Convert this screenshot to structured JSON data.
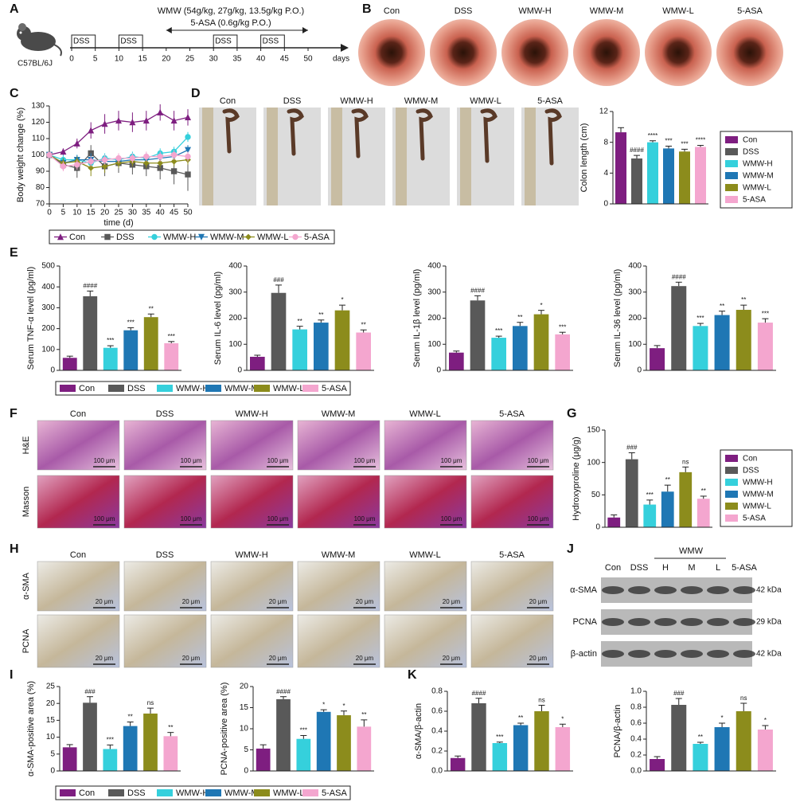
{
  "panel_letters": [
    "A",
    "B",
    "C",
    "D",
    "E",
    "F",
    "G",
    "H",
    "I",
    "J",
    "K"
  ],
  "timeline": {
    "strain": "C57BL/6J",
    "treatments": [
      "WMW (54g/kg, 27g/kg, 13.5g/kg P.O.)",
      "5-ASA (0.6g/kg P.O.)"
    ],
    "treatment_span": [
      20,
      50
    ],
    "days": [
      0,
      5,
      10,
      15,
      20,
      25,
      30,
      35,
      40,
      45,
      50
    ],
    "unit": "days",
    "dss": [
      {
        "label": "DSS",
        "start": 0,
        "end": 5
      },
      {
        "label": "DSS",
        "start": 10,
        "end": 15
      },
      {
        "label": "DSS",
        "start": 30,
        "end": 35
      },
      {
        "label": "DSS",
        "start": 40,
        "end": 45
      }
    ]
  },
  "endoscopy": {
    "labels": [
      "Con",
      "DSS",
      "WMW-H",
      "WMW-M",
      "WMW-L",
      "5-ASA"
    ]
  },
  "colon_photos": {
    "labels": [
      "Con",
      "DSS",
      "WMW-H",
      "WMW-M",
      "WMW-L",
      "5-ASA"
    ]
  },
  "histology": {
    "columns": [
      "Con",
      "DSS",
      "WMW-H",
      "WMW-M",
      "WMW-L",
      "5-ASA"
    ],
    "rows": [
      "H&E",
      "Masson"
    ],
    "scale_bar": "100 μm"
  },
  "ihc": {
    "columns": [
      "Con",
      "DSS",
      "WMW-H",
      "WMW-M",
      "WMW-L",
      "5-ASA"
    ],
    "rows": [
      "α-SMA",
      "PCNA"
    ],
    "scale_bar": "20 μm"
  },
  "western_blot": {
    "group": "WMW",
    "lanes": [
      "Con",
      "DSS",
      "H",
      "M",
      "L",
      "5-ASA"
    ],
    "rows": [
      {
        "protein": "α-SMA",
        "size": "42 kDa"
      },
      {
        "protein": "PCNA",
        "size": "29 kDa"
      },
      {
        "protein": "β-actin",
        "size": "42 kDa"
      }
    ]
  },
  "chart_data": [
    {
      "type": "line",
      "ylabel": "Body weight change (%)",
      "xlabel": "time (d)",
      "x": [
        0,
        5,
        10,
        15,
        20,
        25,
        30,
        35,
        40,
        45,
        50
      ],
      "xlim": [
        0,
        50
      ],
      "xticks": [
        0,
        5,
        10,
        15,
        20,
        25,
        30,
        35,
        40,
        45,
        50
      ],
      "ylim": [
        70,
        130
      ],
      "yticks": [
        70,
        80,
        90,
        100,
        110,
        120,
        130
      ],
      "legend": "bottom",
      "series": [
        {
          "name": "Con",
          "color": "#7e1e80",
          "marker": "triangle",
          "values": [
            100,
            102,
            107,
            115,
            119,
            121,
            120,
            121,
            126,
            121,
            123
          ],
          "errors": [
            0,
            2,
            3,
            5,
            6,
            6,
            6,
            6,
            5,
            6,
            5
          ]
        },
        {
          "name": "DSS",
          "color": "#595959",
          "marker": "square",
          "values": [
            100,
            94,
            92,
            101,
            93,
            95,
            94,
            93,
            92,
            90,
            88
          ],
          "errors": [
            0,
            3,
            6,
            5,
            6,
            6,
            6,
            6,
            7,
            8,
            10
          ]
        },
        {
          "name": "WMW-H",
          "color": "#35d0dc",
          "marker": "circle",
          "values": [
            100,
            97,
            97,
            95,
            98,
            97,
            99,
            98,
            101,
            102,
            111
          ],
          "errors": [
            0,
            3,
            3,
            3,
            3,
            3,
            3,
            3,
            3,
            3,
            3
          ]
        },
        {
          "name": "WMW-M",
          "color": "#1f77b4",
          "marker": "triangle-down",
          "values": [
            100,
            95,
            97,
            97,
            96,
            96,
            97,
            97,
            98,
            99,
            103
          ],
          "errors": [
            0,
            3,
            3,
            4,
            3,
            3,
            3,
            3,
            3,
            3,
            3
          ]
        },
        {
          "name": "WMW-L",
          "color": "#8c8c1c",
          "marker": "diamond",
          "values": [
            100,
            95,
            96,
            92,
            93,
            95,
            96,
            95,
            95,
            96,
            97
          ],
          "errors": [
            0,
            3,
            3,
            5,
            4,
            3,
            3,
            3,
            3,
            3,
            3
          ]
        },
        {
          "name": "5-ASA",
          "color": "#f4a6cf",
          "marker": "circle",
          "values": [
            100,
            93,
            94,
            96,
            97,
            98,
            98,
            99,
            99,
            100,
            99
          ],
          "errors": [
            0,
            3,
            3,
            3,
            3,
            3,
            3,
            3,
            3,
            3,
            3
          ]
        }
      ]
    },
    {
      "type": "bar",
      "ylabel": "Colon length (cm)",
      "legend": "right",
      "categories": [
        "Con",
        "DSS",
        "WMW-H",
        "WMW-M",
        "WMW-L",
        "5-ASA"
      ],
      "colors": [
        "#7e1e80",
        "#595959",
        "#35d0dc",
        "#1f77b4",
        "#8c8c1c",
        "#f4a6cf"
      ],
      "values": [
        9.3,
        5.9,
        8.0,
        7.2,
        6.8,
        7.4
      ],
      "errors": [
        0.6,
        0.4,
        0.2,
        0.3,
        0.3,
        0.2
      ],
      "annotations": [
        null,
        "####",
        "****",
        "***",
        "***",
        "****"
      ],
      "ylim": [
        0,
        12
      ],
      "yticks": [
        0,
        4,
        8,
        12
      ]
    },
    {
      "type": "bar",
      "ylabel": "Serum TNF-α level (pg/ml)",
      "legend": "bottom",
      "categories": [
        "Con",
        "DSS",
        "WMW-H",
        "WMW-M",
        "WMW-L",
        "5-ASA"
      ],
      "colors": [
        "#7e1e80",
        "#595959",
        "#35d0dc",
        "#1f77b4",
        "#8c8c1c",
        "#f4a6cf"
      ],
      "values": [
        60,
        355,
        108,
        192,
        255,
        130
      ],
      "errors": [
        8,
        25,
        10,
        12,
        15,
        8
      ],
      "annotations": [
        null,
        "####",
        "***",
        "***",
        "**",
        "***"
      ],
      "ylim": [
        0,
        500
      ],
      "yticks": [
        0,
        100,
        200,
        300,
        400,
        500
      ]
    },
    {
      "type": "bar",
      "ylabel": "Serum IL-6 level (pg/ml)",
      "categories": [
        "Con",
        "DSS",
        "WMW-H",
        "WMW-M",
        "WMW-L",
        "5-ASA"
      ],
      "colors": [
        "#7e1e80",
        "#595959",
        "#35d0dc",
        "#1f77b4",
        "#8c8c1c",
        "#f4a6cf"
      ],
      "values": [
        52,
        297,
        157,
        183,
        230,
        145
      ],
      "errors": [
        6,
        30,
        12,
        10,
        20,
        10
      ],
      "annotations": [
        null,
        "###",
        "**",
        "**",
        "*",
        "**"
      ],
      "ylim": [
        0,
        400
      ],
      "yticks": [
        0,
        100,
        200,
        300,
        400
      ]
    },
    {
      "type": "bar",
      "ylabel": "Serum IL-1β level (pg/ml)",
      "categories": [
        "Con",
        "DSS",
        "WMW-H",
        "WMW-M",
        "WMW-L",
        "5-ASA"
      ],
      "colors": [
        "#7e1e80",
        "#595959",
        "#35d0dc",
        "#1f77b4",
        "#8c8c1c",
        "#f4a6cf"
      ],
      "values": [
        68,
        268,
        125,
        170,
        215,
        138
      ],
      "errors": [
        6,
        18,
        6,
        14,
        15,
        8
      ],
      "annotations": [
        null,
        "####",
        "***",
        "**",
        "*",
        "***"
      ],
      "ylim": [
        0,
        400
      ],
      "yticks": [
        0,
        100,
        200,
        300,
        400
      ]
    },
    {
      "type": "bar",
      "ylabel": "Serum IL-36 level (pg/ml)",
      "categories": [
        "Con",
        "DSS",
        "WMW-H",
        "WMW-M",
        "WMW-L",
        "5-ASA"
      ],
      "colors": [
        "#7e1e80",
        "#595959",
        "#35d0dc",
        "#1f77b4",
        "#8c8c1c",
        "#f4a6cf"
      ],
      "values": [
        85,
        323,
        170,
        212,
        232,
        183
      ],
      "errors": [
        10,
        15,
        10,
        15,
        18,
        15
      ],
      "annotations": [
        null,
        "####",
        "***",
        "**",
        "**",
        "***"
      ],
      "ylim": [
        0,
        400
      ],
      "yticks": [
        0,
        100,
        200,
        300,
        400
      ]
    },
    {
      "type": "bar",
      "ylabel": "Hydroxyproline (μg/g)",
      "legend": "right",
      "categories": [
        "Con",
        "DSS",
        "WMW-H",
        "WMW-M",
        "WMW-L",
        "5-ASA"
      ],
      "colors": [
        "#7e1e80",
        "#595959",
        "#35d0dc",
        "#1f77b4",
        "#8c8c1c",
        "#f4a6cf"
      ],
      "values": [
        15,
        105,
        35,
        55,
        85,
        44
      ],
      "errors": [
        4,
        10,
        7,
        10,
        8,
        4
      ],
      "annotations": [
        null,
        "###",
        "***",
        "**",
        "ns",
        "**"
      ],
      "ylim": [
        0,
        150
      ],
      "yticks": [
        0,
        50,
        100,
        150
      ]
    },
    {
      "type": "bar",
      "ylabel": "α-SMA-positive area (%)",
      "legend": "bottom",
      "categories": [
        "Con",
        "DSS",
        "WMW-H",
        "WMW-M",
        "WMW-L",
        "5-ASA"
      ],
      "colors": [
        "#7e1e80",
        "#595959",
        "#35d0dc",
        "#1f77b4",
        "#8c8c1c",
        "#f4a6cf"
      ],
      "values": [
        7,
        20.2,
        6.5,
        13.3,
        17,
        10.3
      ],
      "errors": [
        0.8,
        1.8,
        1.2,
        1.2,
        1.6,
        1.1
      ],
      "annotations": [
        null,
        "###",
        "***",
        "**",
        "ns",
        "**"
      ],
      "ylim": [
        0,
        25
      ],
      "yticks": [
        0,
        5,
        10,
        15,
        20,
        25
      ]
    },
    {
      "type": "bar",
      "ylabel": "PCNA-positive area (%)",
      "categories": [
        "Con",
        "DSS",
        "WMW-H",
        "WMW-M",
        "WMW-L",
        "5-ASA"
      ],
      "colors": [
        "#7e1e80",
        "#595959",
        "#35d0dc",
        "#1f77b4",
        "#8c8c1c",
        "#f4a6cf"
      ],
      "values": [
        5.3,
        17,
        7.6,
        14,
        13.2,
        10.5
      ],
      "errors": [
        0.9,
        0.6,
        0.8,
        0.5,
        1.0,
        1.6
      ],
      "annotations": [
        null,
        "####",
        "***",
        "*",
        "*",
        "**"
      ],
      "ylim": [
        0,
        20
      ],
      "yticks": [
        0,
        5,
        10,
        15,
        20
      ]
    },
    {
      "type": "bar",
      "ylabel": "α-SMA/β-actin",
      "categories": [
        "Con",
        "DSS",
        "WMW-H",
        "WMW-M",
        "WMW-L",
        "5-ASA"
      ],
      "colors": [
        "#7e1e80",
        "#595959",
        "#35d0dc",
        "#1f77b4",
        "#8c8c1c",
        "#f4a6cf"
      ],
      "values": [
        0.13,
        0.68,
        0.28,
        0.46,
        0.6,
        0.44
      ],
      "errors": [
        0.02,
        0.05,
        0.01,
        0.02,
        0.06,
        0.03
      ],
      "annotations": [
        null,
        "####",
        "***",
        "**",
        "ns",
        "*"
      ],
      "ylim": [
        0,
        0.8
      ],
      "yticks": [
        {
          "value": 0,
          "label": "0.0"
        },
        0.2,
        0.4,
        0.6,
        0.8
      ]
    },
    {
      "type": "bar",
      "ylabel": "PCNA/β-actin",
      "categories": [
        "Con",
        "DSS",
        "WMW-H",
        "WMW-M",
        "WMW-L",
        "5-ASA"
      ],
      "colors": [
        "#7e1e80",
        "#595959",
        "#35d0dc",
        "#1f77b4",
        "#8c8c1c",
        "#f4a6cf"
      ],
      "values": [
        0.15,
        0.83,
        0.34,
        0.55,
        0.75,
        0.52
      ],
      "errors": [
        0.03,
        0.08,
        0.02,
        0.05,
        0.1,
        0.05
      ],
      "annotations": [
        null,
        "###",
        "**",
        "*",
        "ns",
        "*"
      ],
      "ylim": [
        0,
        1.0
      ],
      "yticks": [
        {
          "value": 0,
          "label": "0.0"
        },
        0.2,
        0.4,
        0.6,
        0.8,
        {
          "value": 1,
          "label": "1.0"
        }
      ]
    }
  ]
}
